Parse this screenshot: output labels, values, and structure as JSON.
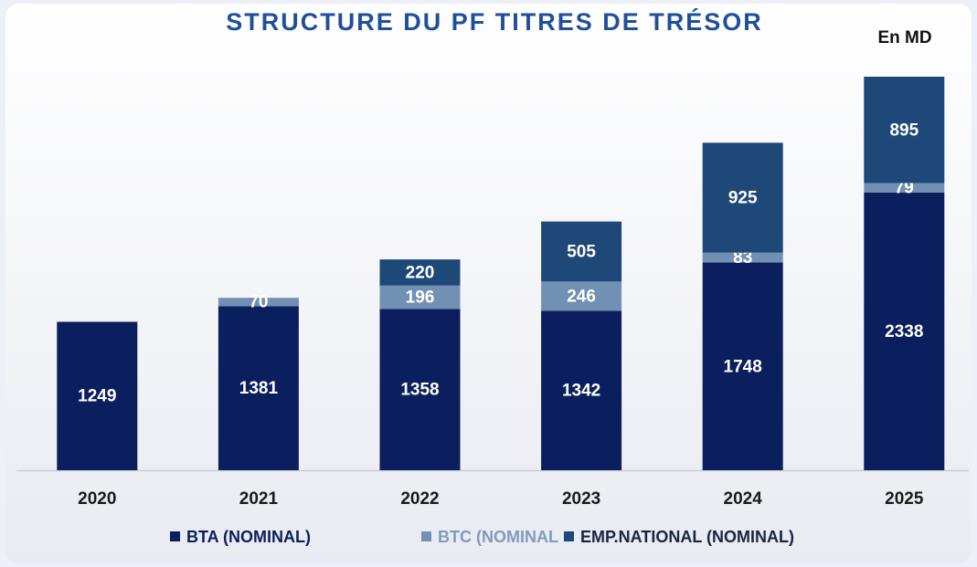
{
  "chart_data": {
    "type": "stacked_bar",
    "title": "STRUCTURE  DU  PF  TITRES  DE  TRÉSOR",
    "annotation": "En MD",
    "categories": [
      "2020",
      "2021",
      "2022",
      "2023",
      "2024",
      "2025"
    ],
    "series": [
      {
        "name": "BTA (NOMINAL)",
        "color": "#0b1f5e",
        "values": [
          1249,
          1381,
          1358,
          1342,
          1748,
          2338
        ]
      },
      {
        "name": "BTC (NOMINAL",
        "color": "#7290b3",
        "values": [
          null,
          70,
          196,
          246,
          83,
          79
        ]
      },
      {
        "name": "EMP.NATIONAL (NOMINAL)",
        "color": "#1e4878",
        "values": [
          null,
          null,
          220,
          505,
          925,
          895
        ]
      }
    ]
  }
}
